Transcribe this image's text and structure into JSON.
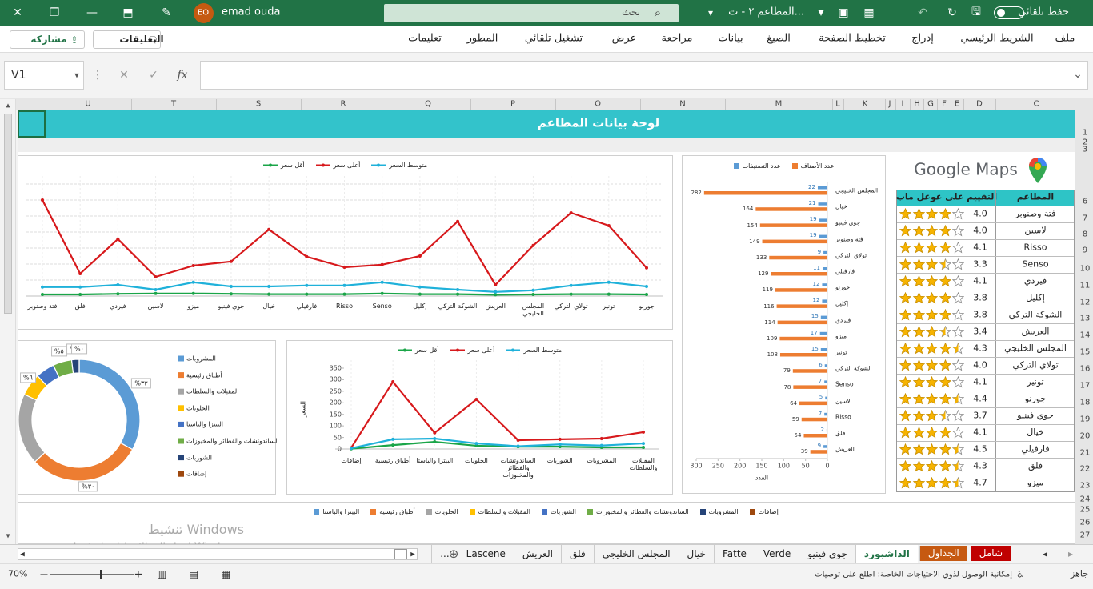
{
  "title_bar": {
    "autosave": "حفظ تلقائي",
    "file_name": "المطاعم ٢ - ت...",
    "search": "بحث",
    "user_name": "emad ouda",
    "user_initials": "EO"
  },
  "ribbon": {
    "tabs": [
      "ملف",
      "الشريط الرئيسي",
      "إدراج",
      "تخطيط الصفحة",
      "الصيغ",
      "بيانات",
      "مراجعة",
      "عرض",
      "تشغيل تلقائي",
      "المطور",
      "تعليمات"
    ],
    "comments": "التعليقات",
    "share": "مشاركة"
  },
  "formula_bar": {
    "name_box": "V1",
    "fx": "fx"
  },
  "columns": [
    "U",
    "T",
    "S",
    "R",
    "Q",
    "P",
    "O",
    "N",
    "M",
    "L",
    "K",
    "J",
    "I",
    "H",
    "G",
    "F",
    "E",
    "D",
    "C"
  ],
  "rows": [
    "1",
    "2",
    "3",
    "6",
    "7",
    "8",
    "9",
    "10",
    "11",
    "12",
    "13",
    "14",
    "15",
    "16",
    "17",
    "18",
    "19",
    "20",
    "21",
    "22",
    "23",
    "24",
    "25",
    "26",
    "27"
  ],
  "dashboard_title": "لوحة بيانات المطاعم",
  "google_maps": "Google Maps",
  "table": {
    "headers": [
      "المطاعم",
      "التقييم على غوغل ماب"
    ],
    "rows": [
      [
        "فتة وصنوبر",
        "4.0"
      ],
      [
        "لاسين",
        "4.0"
      ],
      [
        "Risso",
        "4.1"
      ],
      [
        "Senso",
        "3.3"
      ],
      [
        "فيردي",
        "4.1"
      ],
      [
        "إكليل",
        "3.8"
      ],
      [
        "الشوكة التركي",
        "3.8"
      ],
      [
        "العريش",
        "3.4"
      ],
      [
        "المجلس الخليجي",
        "4.3"
      ],
      [
        "تولاي التركي",
        "4.0"
      ],
      [
        "تونير",
        "4.1"
      ],
      [
        "جورنو",
        "4.4"
      ],
      [
        "جوي فينيو",
        "3.7"
      ],
      [
        "خيال",
        "4.1"
      ],
      [
        "فارفيلي",
        "4.5"
      ],
      [
        "فلق",
        "4.3"
      ],
      [
        "ميزو",
        "4.7"
      ]
    ]
  },
  "chart_data": [
    {
      "type": "line",
      "categories": [
        "فتة وصنوبر",
        "فلق",
        "فيردي",
        "لاسين",
        "ميزو",
        "جوي فينيو",
        "خيال",
        "فارفيلي",
        "Risso",
        "Senso",
        "إكليل",
        "الشوكة التركي",
        "العريش",
        "المجلس الخليجي",
        "تولاي التركي",
        "تونير",
        "جورنو"
      ],
      "series": [
        {
          "name": "أقل سعر",
          "color": "#1aa548",
          "values": [
            5,
            5,
            7,
            8,
            8,
            7,
            6,
            6,
            6,
            8,
            6,
            6,
            4,
            5,
            6,
            6,
            5
          ]
        },
        {
          "name": "أعلى سعر",
          "color": "#d7191c",
          "values": [
            300,
            70,
            178,
            60,
            95,
            108,
            208,
            123,
            90,
            98,
            125,
            233,
            35,
            158,
            260,
            220,
            88
          ]
        },
        {
          "name": "متوسط السعر",
          "color": "#1fb1da",
          "values": [
            28,
            28,
            35,
            20,
            43,
            30,
            30,
            33,
            33,
            43,
            28,
            20,
            13,
            18,
            33,
            43,
            30
          ]
        }
      ],
      "ylim": [
        0,
        350
      ],
      "grid": true
    },
    {
      "type": "donut",
      "categories": [
        "المشروبات",
        "أطباق رئيسية",
        "المقبلات والسلطات",
        "الحلويات",
        "البيتزا والباستا",
        "الساندوتشات والفطائر والمخبوزات",
        "الشوربات",
        "إضافات"
      ],
      "values": [
        33,
        30,
        19,
        6,
        5,
        5,
        2,
        0
      ],
      "value_labels": [
        "%٣٣",
        "%٣٠",
        null,
        "%٦",
        null,
        "%٥",
        "%٢",
        "%٠"
      ],
      "colors": [
        "#5b9bd5",
        "#ed7d31",
        "#a5a5a5",
        "#ffc000",
        "#4472c4",
        "#70ad47",
        "#264478",
        "#9e480e"
      ]
    },
    {
      "type": "line",
      "categories": [
        "إضافات",
        "أطباق رئيسية",
        "البيتزا والباستا",
        "الحلويات",
        "الساندوتشات والفطائر والمخبوزات",
        "الشوربات",
        "المشروبات",
        "المقبلات والسلطات"
      ],
      "series": [
        {
          "name": "أقل سعر",
          "color": "#1aa548",
          "values": [
            1,
            17,
            31,
            14,
            10,
            10,
            7,
            7
          ]
        },
        {
          "name": "أعلى سعر",
          "color": "#d7191c",
          "values": [
            5,
            291,
            70,
            215,
            38,
            42,
            45,
            73
          ]
        },
        {
          "name": "متوسط السعر",
          "color": "#1fb1da",
          "values": [
            3,
            42,
            45,
            24,
            12,
            20,
            15,
            24
          ]
        }
      ],
      "ylim": [
        0,
        350
      ],
      "yticks": [
        0,
        50,
        100,
        150,
        200,
        250,
        300,
        350
      ],
      "y_label": "السعر",
      "grid": false
    },
    {
      "type": "bar",
      "orientation": "horizontal",
      "x_reversed": true,
      "categories": [
        "المجلس الخليجي",
        "خيال",
        "جوي فينيو",
        "فتة وصنوبر",
        "تولاي التركي",
        "فارفيلي",
        "جورنو",
        "إكليل",
        "فيردي",
        "ميزو",
        "تونير",
        "الشوكة التركي",
        "Senso",
        "لاسين",
        "Risso",
        "فلق",
        "العريش"
      ],
      "series": [
        {
          "name": "عدد التصنيفات",
          "color": "#5b9bd5",
          "values": [
            22,
            21,
            19,
            19,
            9,
            11,
            12,
            12,
            15,
            17,
            15,
            6,
            7,
            5,
            7,
            2,
            9
          ]
        },
        {
          "name": "عدد الأصناف",
          "color": "#ed7d31",
          "values": [
            282,
            164,
            154,
            149,
            133,
            129,
            119,
            116,
            114,
            109,
            108,
            79,
            78,
            64,
            59,
            54,
            39
          ]
        }
      ],
      "xlim": [
        0,
        300
      ],
      "xticks": [
        0,
        50,
        100,
        150,
        200,
        250,
        300
      ],
      "x_label": "العدد"
    }
  ],
  "bottom_chart": {
    "legend": [
      {
        "name": "إضافات",
        "color": "#9e480e"
      },
      {
        "name": "المشروبات",
        "color": "#264478"
      },
      {
        "name": "الساندوتشات والفطائر والمخبوزات",
        "color": "#70ad47"
      },
      {
        "name": "الشوربات",
        "color": "#4472c4"
      },
      {
        "name": "المقبلات والسلطات",
        "color": "#ffc000"
      },
      {
        "name": "الحلويات",
        "color": "#a5a5a5"
      },
      {
        "name": "أطباق رئيسية",
        "color": "#ed7d31"
      },
      {
        "name": "البيتزا والباستا",
        "color": "#5b9bd5"
      }
    ]
  },
  "sheet_tabs": [
    "شامل",
    "الجداول",
    "الداشبورد",
    "جوي فينيو",
    "Verde",
    "Fatte",
    "خيال",
    "المجلس الخليجي",
    "فلق",
    "العريش",
    "Lascene",
    "..."
  ],
  "status_bar": {
    "ready": "جاهز",
    "accessibility": "إمكانية الوصول لذوي الاحتياجات الخاصة: اطلع على توصيات",
    "zoom": "70%"
  },
  "watermark": {
    "title": "تنشيط Windows",
    "subtitle": "انتقل إلى الإعدادات لتنشيط Windows."
  }
}
